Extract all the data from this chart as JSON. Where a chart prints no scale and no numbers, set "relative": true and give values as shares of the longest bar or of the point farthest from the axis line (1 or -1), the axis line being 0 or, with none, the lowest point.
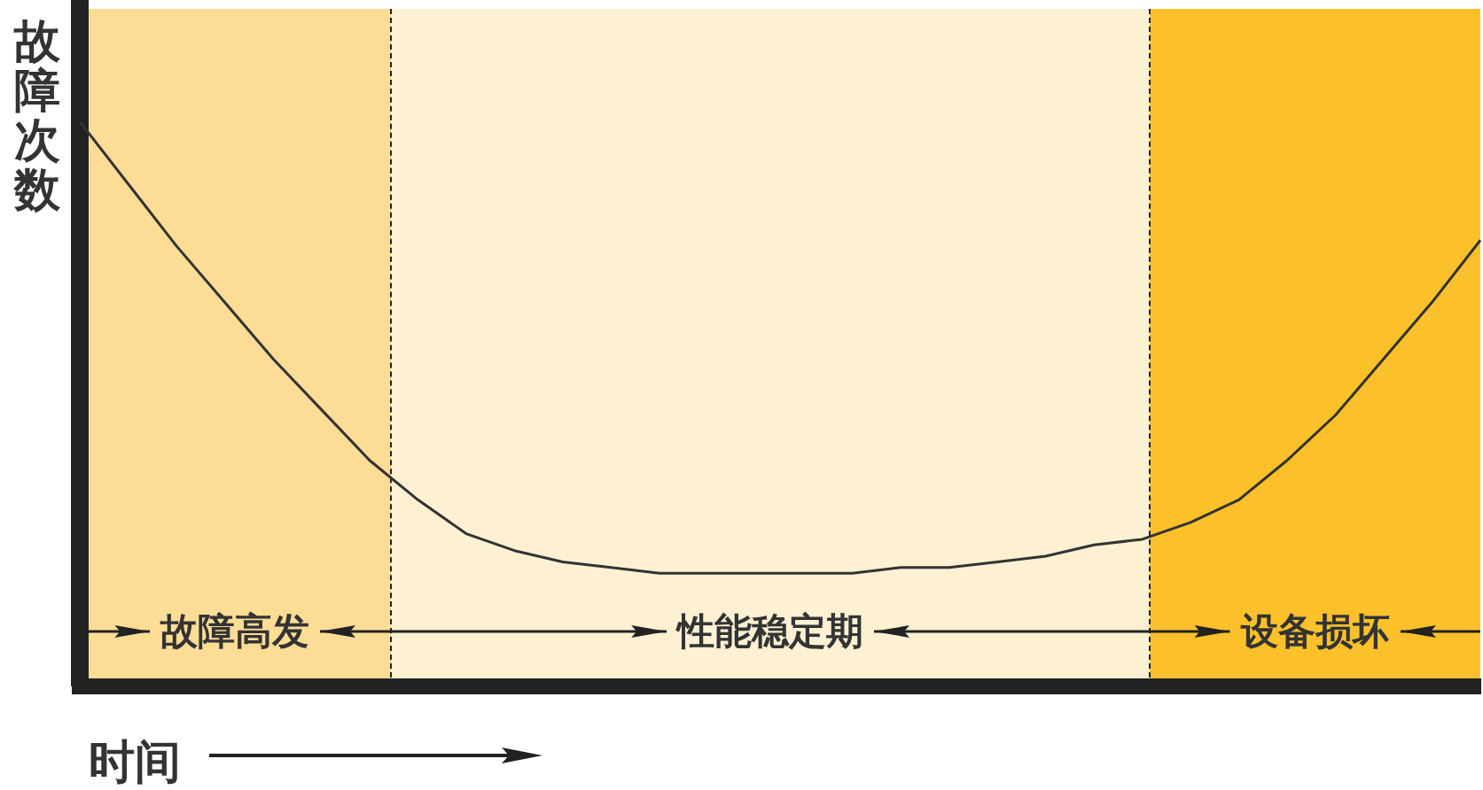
{
  "chart_data": {
    "type": "line",
    "relative": true,
    "xlabel": "时间",
    "ylabel": "故障次数",
    "categories": [
      null,
      null,
      null,
      null,
      null,
      null,
      null,
      null,
      null,
      null,
      null,
      null,
      null,
      null,
      null,
      null,
      null,
      null,
      null,
      null,
      null,
      null,
      null,
      null,
      null,
      null,
      null,
      null,
      null,
      null
    ],
    "series": [
      {
        "color": "#333333",
        "values": [
          1.0,
          0.89,
          0.78,
          0.68,
          0.58,
          0.49,
          0.4,
          0.33,
          0.27,
          0.24,
          0.22,
          0.21,
          0.2,
          0.2,
          0.2,
          0.2,
          0.2,
          0.21,
          0.21,
          0.22,
          0.23,
          0.25,
          0.26,
          0.29,
          0.33,
          0.4,
          0.48,
          0.58,
          0.68,
          0.79
        ]
      }
    ],
    "annotations": [
      "故障高发",
      "性能稳定期",
      "设备损坏"
    ]
  }
}
